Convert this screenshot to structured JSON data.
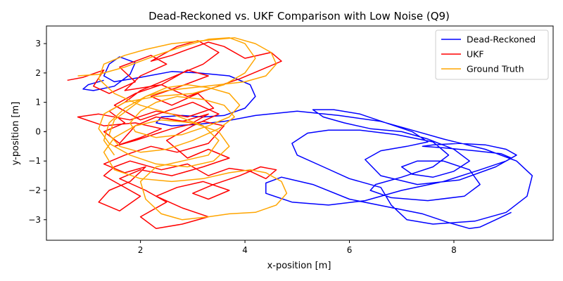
{
  "chart_data": {
    "type": "line",
    "title": "Dead-Reckoned vs. UKF Comparison with Low Noise (Q9)",
    "xlabel": "x-position [m]",
    "ylabel": "y-position [m]",
    "xlim": [
      0.2,
      9.9
    ],
    "ylim": [
      -3.7,
      3.6
    ],
    "xticks": [
      2,
      4,
      6,
      8
    ],
    "yticks": [
      -3,
      -2,
      -1,
      0,
      1,
      2,
      3
    ],
    "grid": false,
    "legend_position": "top-right",
    "series": [
      {
        "name": "Dead-Reckoned",
        "color": "#0000ff",
        "x": [
          1.3,
          1.0,
          0.9,
          1.1,
          1.5,
          1.8,
          1.9,
          1.6,
          1.4,
          1.3,
          1.5,
          2.0,
          2.6,
          3.1,
          3.7,
          4.1,
          4.2,
          4.0,
          3.6,
          3.2,
          2.8,
          2.4,
          2.3,
          2.6,
          3.1,
          3.6,
          4.2,
          5.0,
          5.8,
          6.6,
          7.1,
          7.8,
          8.6,
          9.2,
          9.5,
          9.4,
          9.0,
          8.4,
          7.6,
          7.1,
          6.8,
          6.6,
          6.0,
          5.5,
          5.0,
          4.9,
          5.2,
          5.6,
          6.2,
          6.9,
          7.6,
          7.9,
          7.6,
          7.0,
          6.5,
          6.4,
          6.8,
          7.5,
          8.2,
          8.5,
          8.3,
          7.8,
          7.3,
          7.0,
          7.2,
          7.6,
          8.0,
          8.3,
          8.0,
          7.5,
          7.0,
          6.4,
          5.9,
          5.5,
          5.3,
          5.7,
          6.2,
          6.7,
          7.2,
          7.5,
          7.1,
          6.6,
          6.3,
          6.6,
          7.3,
          8.1,
          8.8,
          9.1,
          8.9,
          8.4,
          7.8,
          7.4,
          7.6,
          8.1,
          8.6,
          9.0,
          9.2,
          9.0,
          8.5,
          7.8,
          7.0,
          6.3,
          5.6,
          4.9,
          4.4,
          4.4,
          4.7,
          5.3,
          6.0,
          6.7,
          7.4,
          7.9,
          8.3,
          8.5,
          8.8,
          9.1
        ],
        "y": [
          1.75,
          1.6,
          1.45,
          1.4,
          1.55,
          1.95,
          2.35,
          2.55,
          2.3,
          1.9,
          1.7,
          1.85,
          2.05,
          2.0,
          1.9,
          1.6,
          1.2,
          0.8,
          0.55,
          0.5,
          0.55,
          0.5,
          0.3,
          0.2,
          0.25,
          0.35,
          0.55,
          0.7,
          0.55,
          0.35,
          0.1,
          -0.25,
          -0.6,
          -1.0,
          -1.5,
          -2.2,
          -2.75,
          -3.05,
          -3.15,
          -3.0,
          -2.5,
          -1.9,
          -1.6,
          -1.2,
          -0.8,
          -0.4,
          -0.05,
          0.05,
          0.05,
          -0.1,
          -0.35,
          -0.8,
          -1.2,
          -1.55,
          -1.8,
          -2.0,
          -2.25,
          -2.35,
          -2.2,
          -1.8,
          -1.3,
          -1.0,
          -1.0,
          -1.2,
          -1.45,
          -1.55,
          -1.35,
          -1.0,
          -0.6,
          -0.25,
          0.0,
          0.1,
          0.3,
          0.5,
          0.75,
          0.75,
          0.6,
          0.3,
          0.0,
          -0.35,
          -0.5,
          -0.65,
          -0.95,
          -1.5,
          -1.8,
          -1.65,
          -1.2,
          -0.9,
          -0.75,
          -0.65,
          -0.55,
          -0.5,
          -0.45,
          -0.4,
          -0.45,
          -0.6,
          -0.8,
          -1.0,
          -1.3,
          -1.7,
          -2.0,
          -2.35,
          -2.5,
          -2.4,
          -2.1,
          -1.75,
          -1.55,
          -1.8,
          -2.3,
          -2.55,
          -2.8,
          -3.1,
          -3.3,
          -3.25,
          -3.0,
          -2.75
        ]
      },
      {
        "name": "UKF",
        "color": "#ff0000",
        "x": [
          0.6,
          0.9,
          1.3,
          1.1,
          1.4,
          1.9,
          1.6,
          2.2,
          2.5,
          2.0,
          1.7,
          2.4,
          2.9,
          3.3,
          2.7,
          2.2,
          2.6,
          3.1,
          3.4,
          2.9,
          2.3,
          1.8,
          1.2,
          0.8,
          1.3,
          1.9,
          2.4,
          2.0,
          1.5,
          1.9,
          2.6,
          3.2,
          3.6,
          3.3,
          2.7,
          2.2,
          1.7,
          1.3,
          1.7,
          2.1,
          1.8,
          1.4,
          1.2,
          1.6,
          2.0,
          1.6,
          1.3,
          1.5,
          1.8,
          2.4,
          2.9,
          3.3,
          3.7,
          4.1,
          4.4,
          4.6,
          4.3,
          3.9,
          3.4,
          3.0,
          3.3,
          3.7,
          3.2,
          2.7,
          2.3,
          2.8,
          3.3,
          2.8,
          2.3,
          2.0,
          2.5,
          2.1,
          1.6,
          2.0,
          2.6,
          3.2,
          3.7,
          3.3,
          2.9,
          2.5,
          3.0,
          3.5,
          3.0,
          2.5,
          2.0,
          1.5,
          1.9,
          2.4,
          2.9,
          3.4,
          3.9,
          4.3,
          4.7,
          4.5,
          4.0,
          3.6,
          3.3,
          2.9,
          2.6,
          2.2,
          2.7,
          3.1,
          3.5,
          3.2,
          2.8,
          2.4,
          2.0,
          1.7,
          1.4,
          1.7,
          1.3,
          1.6,
          1.9,
          2.3,
          2.8,
          3.3,
          3.0,
          2.5
        ],
        "y": [
          1.75,
          1.85,
          2.1,
          1.55,
          1.3,
          1.7,
          2.2,
          2.6,
          2.3,
          1.9,
          1.4,
          1.6,
          2.1,
          1.9,
          1.5,
          1.2,
          0.9,
          1.3,
          0.8,
          0.5,
          0.7,
          0.4,
          0.6,
          0.5,
          0.2,
          0.3,
          0.1,
          -0.2,
          -0.5,
          -0.3,
          0.1,
          0.35,
          0.2,
          -0.4,
          -0.7,
          -0.5,
          -0.8,
          -1.1,
          -1.4,
          -1.2,
          -1.7,
          -2.0,
          -2.4,
          -2.7,
          -2.2,
          -1.8,
          -1.5,
          -1.2,
          -1.0,
          -1.3,
          -1.1,
          -1.5,
          -1.25,
          -1.35,
          -1.6,
          -1.3,
          -1.2,
          -1.5,
          -1.8,
          -2.1,
          -2.3,
          -2.0,
          -1.7,
          -1.9,
          -2.2,
          -2.6,
          -2.9,
          -3.15,
          -3.3,
          -2.9,
          -2.4,
          -2.0,
          -1.6,
          -1.3,
          -1.5,
          -1.2,
          -0.9,
          -0.6,
          -0.9,
          -0.3,
          0.2,
          0.6,
          1.0,
          0.7,
          0.4,
          0.9,
          1.3,
          1.6,
          1.2,
          1.5,
          1.8,
          2.1,
          2.4,
          2.7,
          2.5,
          2.9,
          3.05,
          2.8,
          2.6,
          2.4,
          2.9,
          3.1,
          2.7,
          2.3,
          2.0,
          1.7,
          1.4,
          1.0,
          0.7,
          0.3,
          0.0,
          -0.4,
          0.2,
          0.5,
          0.35,
          0.6,
          0.3,
          0.45
        ]
      },
      {
        "name": "Ground Truth",
        "color": "#ffa500",
        "x": [
          0.8,
          1.2,
          1.7,
          2.3,
          2.8,
          3.3,
          3.7,
          4.0,
          4.2,
          4.0,
          3.6,
          3.0,
          2.3,
          1.7,
          1.3,
          1.2,
          1.4,
          1.8,
          2.3,
          2.9,
          3.4,
          3.7,
          3.5,
          3.0,
          2.4,
          1.9,
          1.5,
          1.3,
          1.5,
          2.0,
          2.6,
          3.2,
          3.7,
          4.1,
          4.4,
          4.7,
          4.8,
          4.6,
          4.2,
          3.7,
          3.3,
          2.8,
          2.4,
          2.1,
          2.0,
          2.3,
          2.8,
          3.3,
          3.5,
          3.2,
          2.6,
          2.0,
          1.5,
          1.2,
          1.3,
          1.7,
          2.1,
          2.6,
          3.2,
          3.8,
          4.2,
          4.5,
          4.6,
          4.4,
          4.0,
          3.5,
          3.0,
          2.5,
          2.1,
          1.8,
          1.5,
          1.4,
          1.6,
          2.0,
          2.5,
          3.0,
          3.5,
          3.8,
          3.6,
          3.2,
          2.7,
          2.3,
          2.0,
          1.8,
          1.9,
          2.3,
          2.8,
          3.3,
          3.7,
          3.9,
          3.7,
          3.3,
          2.9,
          2.5,
          2.1,
          1.7,
          1.4,
          1.3,
          1.5
        ],
        "y": [
          1.9,
          1.95,
          2.2,
          2.6,
          2.9,
          3.15,
          3.2,
          3.0,
          2.5,
          2.0,
          1.6,
          1.3,
          1.2,
          1.0,
          0.6,
          0.1,
          -0.4,
          -0.8,
          -1.1,
          -1.2,
          -1.0,
          -0.5,
          0.0,
          0.3,
          0.4,
          0.2,
          -0.2,
          -0.7,
          -1.3,
          -1.6,
          -1.7,
          -1.6,
          -1.4,
          -1.3,
          -1.4,
          -1.7,
          -2.1,
          -2.5,
          -2.75,
          -2.8,
          -2.9,
          -3.0,
          -2.8,
          -2.3,
          -1.7,
          -1.2,
          -1.0,
          -0.8,
          -0.3,
          0.2,
          0.6,
          0.9,
          1.3,
          1.8,
          2.3,
          2.6,
          2.8,
          3.0,
          3.1,
          3.2,
          3.0,
          2.7,
          2.3,
          1.9,
          1.7,
          1.6,
          1.5,
          1.4,
          1.2,
          0.8,
          0.4,
          -0.1,
          -0.5,
          -0.7,
          -0.6,
          -0.3,
          0.1,
          0.5,
          0.9,
          1.1,
          1.2,
          1.0,
          0.7,
          0.3,
          0.0,
          -0.2,
          -0.1,
          0.2,
          0.5,
          0.9,
          1.3,
          1.5,
          1.6,
          1.5,
          1.2,
          0.8,
          0.3,
          -0.3,
          -0.8
        ]
      }
    ]
  }
}
